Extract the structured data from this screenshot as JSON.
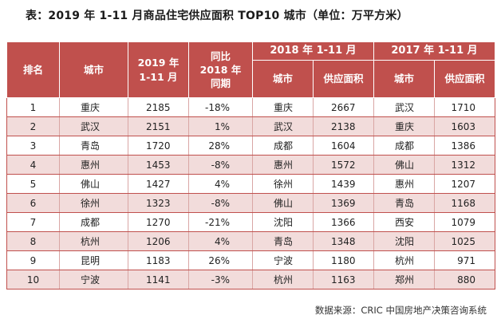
{
  "title": "表：2019 年 1-11 月商品住宅供应面积 TOP10 城市（单位：万平方米）",
  "headers": {
    "rank": "排名",
    "city": "城市",
    "supply_2019": "2019 年\n1-11 月",
    "yoy": "同比\n2018 年\n同期",
    "group_2018": "2018 年 1-11 月",
    "group_2017": "2017 年 1-11 月",
    "city_2018": "城市",
    "supply_2018": "供应面积",
    "city_2017": "城市",
    "supply_2017": "供应面积"
  },
  "rows": [
    {
      "rank": "1",
      "city": "重庆",
      "supply_2019": "2185",
      "yoy": "-18%",
      "city_2018": "重庆",
      "supply_2018": "2667",
      "city_2017": "武汉",
      "supply_2017": "1710"
    },
    {
      "rank": "2",
      "city": "武汉",
      "supply_2019": "2151",
      "yoy": "1%",
      "city_2018": "武汉",
      "supply_2018": "2138",
      "city_2017": "重庆",
      "supply_2017": "1603"
    },
    {
      "rank": "3",
      "city": "青岛",
      "supply_2019": "1720",
      "yoy": "28%",
      "city_2018": "成都",
      "supply_2018": "1604",
      "city_2017": "成都",
      "supply_2017": "1386"
    },
    {
      "rank": "4",
      "city": "惠州",
      "supply_2019": "1453",
      "yoy": "-8%",
      "city_2018": "惠州",
      "supply_2018": "1572",
      "city_2017": "佛山",
      "supply_2017": "1312"
    },
    {
      "rank": "5",
      "city": "佛山",
      "supply_2019": "1427",
      "yoy": "4%",
      "city_2018": "徐州",
      "supply_2018": "1439",
      "city_2017": "惠州",
      "supply_2017": "1207"
    },
    {
      "rank": "6",
      "city": "徐州",
      "supply_2019": "1323",
      "yoy": "-8%",
      "city_2018": "佛山",
      "supply_2018": "1369",
      "city_2017": "青岛",
      "supply_2017": "1168"
    },
    {
      "rank": "7",
      "city": "成都",
      "supply_2019": "1270",
      "yoy": "-21%",
      "city_2018": "沈阳",
      "supply_2018": "1366",
      "city_2017": "西安",
      "supply_2017": "1079"
    },
    {
      "rank": "8",
      "city": "杭州",
      "supply_2019": "1206",
      "yoy": "4%",
      "city_2018": "青岛",
      "supply_2018": "1348",
      "city_2017": "沈阳",
      "supply_2017": "1025"
    },
    {
      "rank": "9",
      "city": "昆明",
      "supply_2019": "1183",
      "yoy": "26%",
      "city_2018": "宁波",
      "supply_2018": "1180",
      "city_2017": "杭州",
      "supply_2017": "971"
    },
    {
      "rank": "10",
      "city": "宁波",
      "supply_2019": "1141",
      "yoy": "-3%",
      "city_2018": "杭州",
      "supply_2018": "1163",
      "city_2017": "郑州",
      "supply_2017": "880"
    }
  ],
  "source": "数据来源：CRIC 中国房地产决策咨询系统",
  "colors": {
    "header_bg": "#c0504d",
    "stripe_bg": "#f2dcdb"
  }
}
